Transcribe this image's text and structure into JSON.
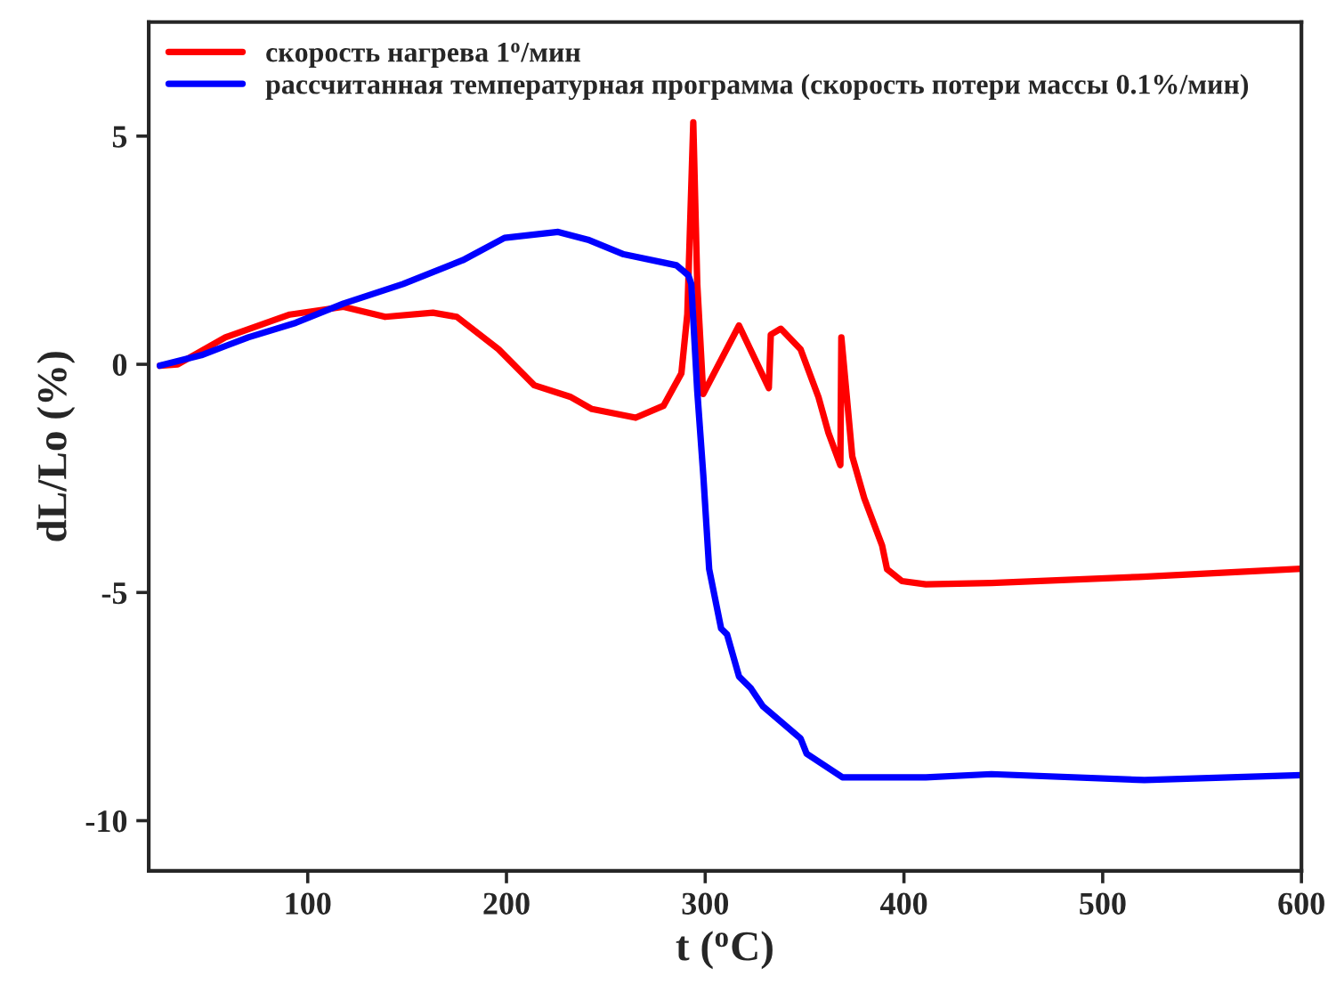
{
  "chart_data": {
    "type": "line",
    "xlabel": "t ($^{o}$C)",
    "ylabel": "dL/Lo (%)",
    "xlim": [
      20,
      600
    ],
    "xticks": [
      100,
      200,
      300,
      400,
      500,
      600
    ],
    "ylim": [
      -11.1,
      7.5
    ],
    "yticks": [
      -10,
      -5,
      0,
      5
    ],
    "grid": false,
    "legend": "top left",
    "line_style": "solid",
    "marker": "none",
    "series": [
      {
        "name": "скорость нагрева 1$^{o}$/мин",
        "color": "#ff0000",
        "x": [
          25.6,
          34.6,
          58.5,
          91,
          118,
          139,
          163,
          175,
          196,
          214,
          232,
          243,
          265,
          279,
          288,
          291,
          294,
          296,
          299,
          317,
          332,
          333,
          338,
          348,
          357,
          362,
          368,
          368.5,
          374,
          380,
          389,
          391.5,
          399,
          411,
          444,
          518,
          600
        ],
        "values": [
          -0.03,
          0,
          0.59,
          1.09,
          1.26,
          1.04,
          1.13,
          1.04,
          0.33,
          -0.46,
          -0.71,
          -0.98,
          -1.17,
          -0.91,
          -0.2,
          1.1,
          5.3,
          1.76,
          -0.65,
          0.85,
          -0.52,
          0.65,
          0.78,
          0.33,
          -0.72,
          -1.5,
          -2.21,
          0.59,
          -2.02,
          -2.93,
          -3.97,
          -4.49,
          -4.75,
          -4.82,
          -4.79,
          -4.66,
          -4.48
        ]
      },
      {
        "name": "рассчитанная температурная программа (скорость потери массы 0.1%/мин)",
        "color": "#0000ff",
        "x": [
          25.6,
          46.5,
          70,
          94,
          118,
          148,
          178,
          199,
          226,
          241,
          259,
          285.5,
          291.5,
          293,
          296,
          299,
          302,
          308,
          311,
          317,
          323,
          329,
          348,
          351,
          369,
          411,
          444,
          521,
          600
        ],
        "values": [
          -0.03,
          0.2,
          0.59,
          0.91,
          1.33,
          1.76,
          2.28,
          2.77,
          2.9,
          2.73,
          2.41,
          2.17,
          1.95,
          1.76,
          -0.59,
          -2.41,
          -4.49,
          -5.79,
          -5.92,
          -6.84,
          -7.1,
          -7.49,
          -8.2,
          -8.53,
          -9.05,
          -9.05,
          -8.98,
          -9.11,
          -9.0
        ]
      }
    ]
  }
}
